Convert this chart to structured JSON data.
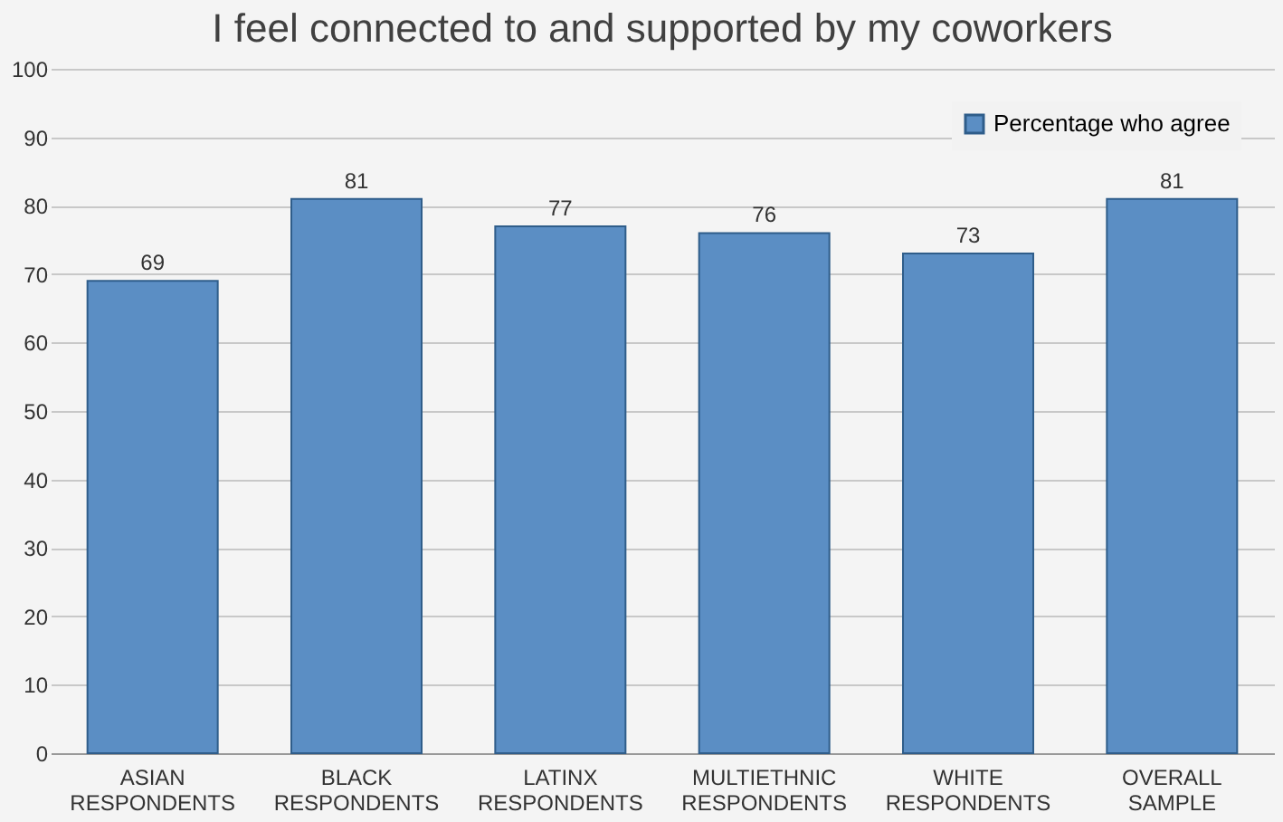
{
  "chart_data": {
    "type": "bar",
    "title": "I feel connected to and supported by my coworkers",
    "categories": [
      "ASIAN RESPONDENTS",
      "BLACK RESPONDENTS",
      "LATINX RESPONDENTS",
      "MULTIETHNIC RESPONDENTS",
      "WHITE RESPONDENTS",
      "OVERALL SAMPLE"
    ],
    "series": [
      {
        "name": "Percentage who agree",
        "color": "#5b8ec4",
        "values": [
          69,
          81,
          77,
          76,
          73,
          81
        ]
      }
    ],
    "ylim": [
      0,
      100
    ],
    "yticks": [
      0,
      10,
      20,
      30,
      40,
      50,
      60,
      70,
      80,
      90,
      100
    ],
    "grid": "y",
    "legend": "top right",
    "data_labels": true
  }
}
